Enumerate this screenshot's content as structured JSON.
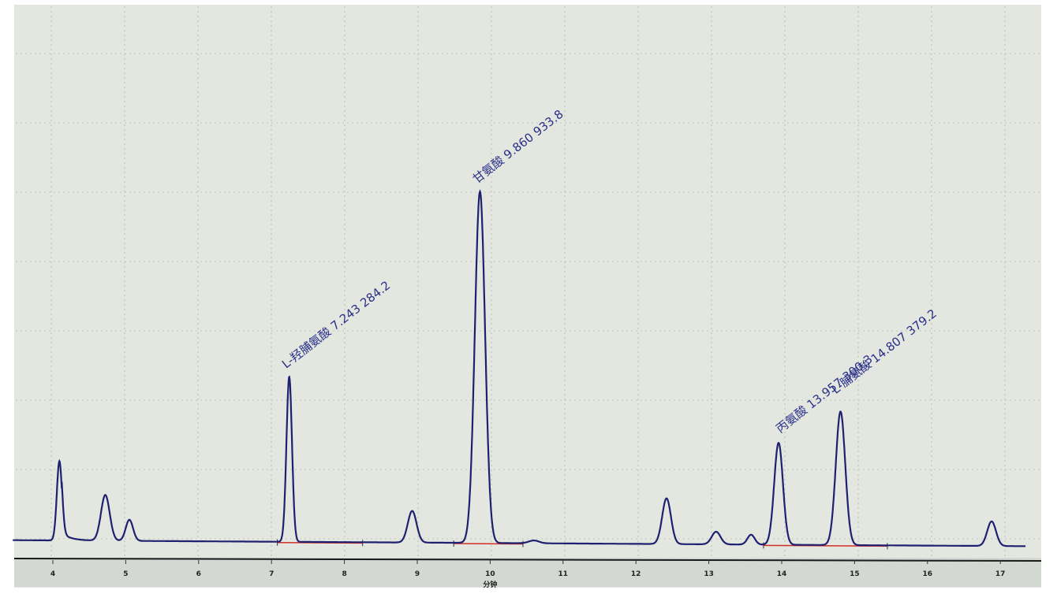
{
  "chart_data": {
    "type": "line",
    "title": "",
    "xlabel": "分钟",
    "ylabel": "",
    "xlim": [
      3.5,
      17.3
    ],
    "x_ticks": [
      "4",
      "5",
      "6",
      "7",
      "8",
      "9",
      "10",
      "11",
      "12",
      "13",
      "14",
      "15",
      "16",
      "17"
    ],
    "grid": true,
    "y_units": "relative intensity (% of largest peak)",
    "line_color": "#1f2170",
    "integration_baseline_color": "#d0302a",
    "background_color": "#e3e7df",
    "peaks": [
      {
        "rt": 4.09,
        "height": 22.6,
        "sigma": 0.035
      },
      {
        "rt": 4.72,
        "height": 13,
        "sigma": 0.06
      },
      {
        "rt": 5.05,
        "height": 6,
        "sigma": 0.05
      },
      {
        "rt": 7.243,
        "height": 47,
        "sigma": 0.038,
        "label": "L-羟脯氨酸 7.243 284.2"
      },
      {
        "rt": 8.93,
        "height": 9,
        "sigma": 0.06
      },
      {
        "rt": 9.86,
        "height": 100,
        "sigma": 0.07,
        "label": "甘氨酸 9.860 933.8"
      },
      {
        "rt": 10.6,
        "height": 0.8,
        "sigma": 0.07
      },
      {
        "rt": 12.42,
        "height": 13,
        "sigma": 0.06
      },
      {
        "rt": 13.1,
        "height": 3.6,
        "sigma": 0.06
      },
      {
        "rt": 13.58,
        "height": 2.8,
        "sigma": 0.05
      },
      {
        "rt": 13.957,
        "height": 29,
        "sigma": 0.06,
        "label": "丙氨酸 13.957 300.3"
      },
      {
        "rt": 14.807,
        "height": 38,
        "sigma": 0.065,
        "label": "L-脯氨酸 14.807 379.2"
      },
      {
        "rt": 16.88,
        "height": 7,
        "sigma": 0.06
      }
    ],
    "integration_ranges": [
      [
        7.08,
        8.25
      ],
      [
        9.5,
        10.45
      ],
      [
        13.75,
        15.45
      ]
    ]
  }
}
